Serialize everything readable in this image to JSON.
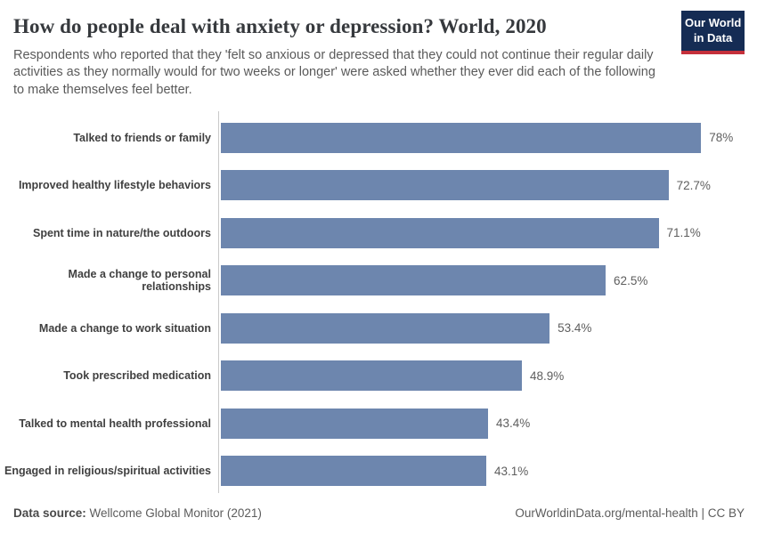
{
  "header": {
    "title": "How do people deal with anxiety or depression? World, 2020",
    "subtitle": "Respondents who reported that they 'felt so anxious or depressed that they could not continue their regular daily activities as they normally would for two weeks or longer' were asked whether they ever did each of the following to make themselves feel better.",
    "logo": {
      "line1": "Our World",
      "line2": "in Data"
    }
  },
  "chart_data": {
    "type": "bar",
    "orientation": "horizontal",
    "title": "How do people deal with anxiety or depression? World, 2020",
    "categories": [
      "Talked to friends or family",
      "Improved healthy lifestyle behaviors",
      "Spent time in nature/the outdoors",
      "Made a change to personal relationships",
      "Made a change to work situation",
      "Took prescribed medication",
      "Talked to mental health professional",
      "Engaged in religious/spiritual activities"
    ],
    "values": [
      78,
      72.7,
      71.1,
      62.5,
      53.4,
      48.9,
      43.4,
      43.1
    ],
    "value_labels": [
      "78%",
      "72.7%",
      "71.1%",
      "62.5%",
      "53.4%",
      "48.9%",
      "43.4%",
      "43.1%"
    ],
    "unit": "%",
    "xlim": [
      0,
      100
    ],
    "grid": false,
    "legend": "none",
    "bar_color": "#6d86ae"
  },
  "colors": {
    "bar": "#6d86ae",
    "logo_navy": "#152c54",
    "logo_red": "#c5303b",
    "axis_line": "#c9c9c9"
  },
  "footer": {
    "datasource_label": "Data source:",
    "datasource_value": " Wellcome Global Monitor (2021)",
    "attribution": "OurWorldinData.org/mental-health | CC BY"
  }
}
